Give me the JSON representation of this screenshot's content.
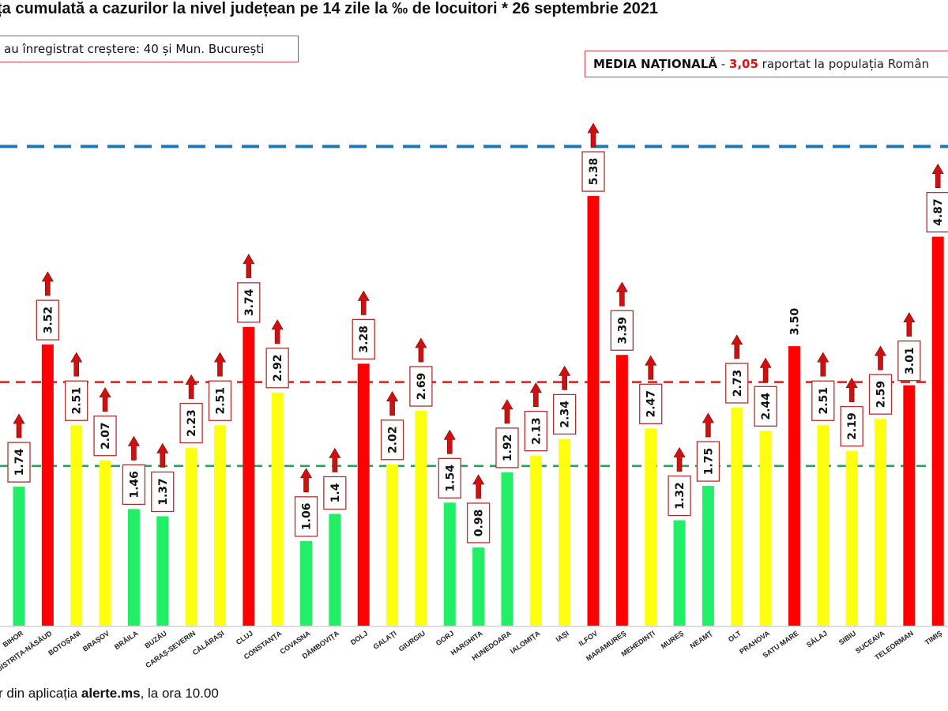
{
  "title": "ța cumulată a cazurilor la nivel județean pe 14 zile la ‰ de locuitori * 26 septembrie 2021",
  "increase_box": "au înregistrat creștere:  40 și Mun. București",
  "national": {
    "label": "MEDIA NAȚIONALĂ",
    "dash": " - ",
    "value": "3,05",
    "suffix": " raportat la populația Român"
  },
  "footer": {
    "pre": "r din aplicația ",
    "bold": "alerte.ms",
    "post": ", la ora 10.00"
  },
  "chart_data": {
    "type": "bar",
    "categories": [
      "BIHOR",
      "BISTRIȚA-NĂSĂUD",
      "BOTOȘANI",
      "BRAȘOV",
      "BRĂILA",
      "BUZĂU",
      "CARAȘ-SEVERIN",
      "CĂLĂRAȘI",
      "CLUJ",
      "CONSTANȚA",
      "COVASNA",
      "DÂMBOVIȚA",
      "DOLJ",
      "GALAȚI",
      "GIURGIU",
      "GORJ",
      "HARGHITA",
      "HUNEDOARA",
      "IALOMIȚA",
      "IAȘI",
      "ILFOV",
      "MARAMUREȘ",
      "MEHEDINȚI",
      "MUREȘ",
      "NEAMȚ",
      "OLT",
      "PRAHOVA",
      "SATU MARE",
      "SĂLAJ",
      "SIBIU",
      "SUCEAVA",
      "TELEORMAN",
      "TIMIȘ"
    ],
    "values": [
      1.74,
      3.52,
      2.51,
      2.07,
      1.46,
      1.37,
      2.23,
      2.51,
      3.74,
      2.92,
      1.06,
      1.4,
      3.28,
      2.02,
      2.69,
      1.54,
      0.98,
      1.92,
      2.13,
      2.34,
      5.38,
      3.39,
      2.47,
      1.32,
      1.75,
      2.73,
      2.44,
      3.5,
      2.51,
      2.19,
      2.59,
      3.01,
      4.87
    ],
    "value_labels": [
      "1.74",
      "3.52",
      "2.51",
      "2.07",
      "1.46",
      "1.37",
      "2.23",
      "2.51",
      "3.74",
      "2.92",
      "1.06",
      "1.4",
      "3.28",
      "2.02",
      "2.69",
      "1.54",
      "0.98",
      "1.92",
      "2.13",
      "2.34",
      "5.38",
      "3.39",
      "2.47",
      "1.32",
      "1.75",
      "2.73",
      "2.44",
      "3.50",
      "2.51",
      "2.19",
      "2.59",
      "3.01",
      "4.87"
    ],
    "increasing": [
      true,
      true,
      true,
      true,
      true,
      true,
      true,
      true,
      true,
      true,
      true,
      true,
      true,
      true,
      true,
      true,
      true,
      true,
      true,
      true,
      true,
      true,
      true,
      true,
      true,
      true,
      true,
      false,
      true,
      true,
      true,
      true,
      true
    ],
    "ylim": [
      0,
      6.5
    ],
    "reference_lines": [
      {
        "value": 2.0,
        "color": "#2e9e5a"
      },
      {
        "value": 3.05,
        "color": "#d42020"
      },
      {
        "value": 6.0,
        "color": "#1f77b4"
      }
    ],
    "colors": {
      "green": "#22ee66",
      "yellow": "#ffff10",
      "red": "#ff0000",
      "arrow": "#cc1111",
      "box": "#b03030"
    }
  }
}
